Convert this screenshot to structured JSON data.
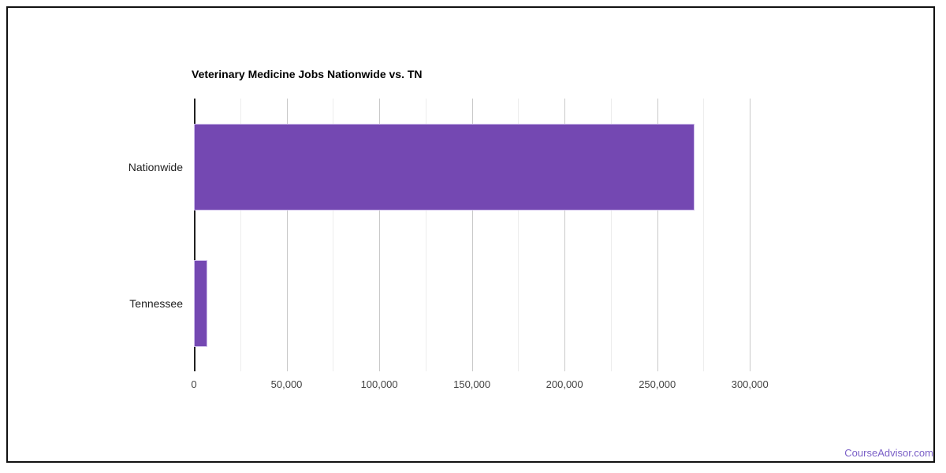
{
  "chart_data": {
    "type": "bar",
    "orientation": "horizontal",
    "title": "Veterinary Medicine Jobs Nationwide vs. TN",
    "categories": [
      "Nationwide",
      "Tennessee"
    ],
    "values": [
      270000,
      7400
    ],
    "xlabel": "",
    "ylabel": "",
    "xlim": [
      0,
      325000
    ],
    "x_tick_interval": 50000,
    "x_minor_tick_interval": 25000,
    "x_tick_labels": [
      "0",
      "50,000",
      "100,000",
      "150,000",
      "200,000",
      "250,000",
      "300,000"
    ],
    "grid": true,
    "legend_position": "none",
    "colors": {
      "bar_fill": "#7448B2",
      "bar_stroke": "#CDBCEB",
      "axis_line": "#212121",
      "grid_major": "#C9C9C9",
      "grid_minor": "#EDEDED",
      "tick_label": "#444444",
      "category_label": "#212121",
      "title": "#000000",
      "frame_border": "#111111"
    }
  },
  "footer": {
    "link_label": "CourseAdvisor.com",
    "link_color": "#7A5FC7"
  }
}
